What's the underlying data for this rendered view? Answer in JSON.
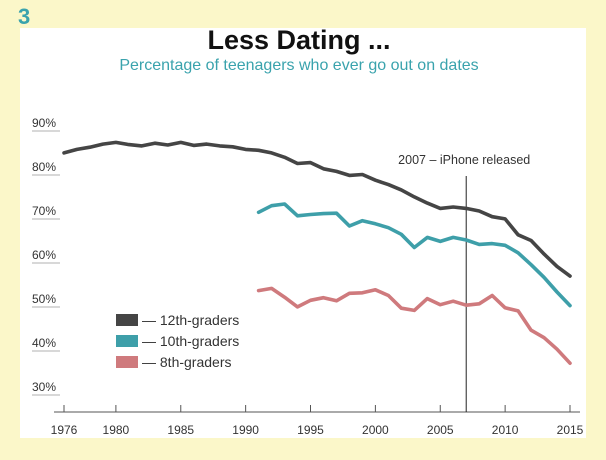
{
  "panel_number": "3",
  "colors": {
    "background": "#fbf7c9",
    "card": "#ffffff",
    "accent": "#3aa3ad",
    "series_12th": "#454545",
    "series_10th": "#3e9fa9",
    "series_8th": "#cf7a7d"
  },
  "chart_data": {
    "type": "line",
    "title": "Less Dating ...",
    "subtitle": "Percentage of teenagers who ever go out on dates",
    "xlabel": "",
    "ylabel": "",
    "xlim": [
      1976,
      2015
    ],
    "ylim": [
      30,
      90
    ],
    "x_ticks": [
      "1976",
      "1980",
      "1985",
      "1990",
      "1995",
      "2000",
      "2005",
      "2010",
      "2015"
    ],
    "y_ticks": [
      "90%",
      "80%",
      "70%",
      "60%",
      "50%",
      "40%",
      "30%"
    ],
    "annotation": {
      "x": 2007,
      "label": "2007 – iPhone released"
    },
    "legend_position": "bottom-left",
    "series": [
      {
        "name": "— 12th-graders",
        "color": "#454545",
        "x": [
          1976,
          1977,
          1978,
          1979,
          1980,
          1981,
          1982,
          1983,
          1984,
          1985,
          1986,
          1987,
          1988,
          1989,
          1990,
          1991,
          1992,
          1993,
          1994,
          1995,
          1996,
          1997,
          1998,
          1999,
          2000,
          2001,
          2002,
          2003,
          2004,
          2005,
          2006,
          2007,
          2008,
          2009,
          2010,
          2011,
          2012,
          2013,
          2014,
          2015
        ],
        "values": [
          83.2,
          84.0,
          84.5,
          85.2,
          85.6,
          85.1,
          84.8,
          85.4,
          85.0,
          85.6,
          84.9,
          85.2,
          84.8,
          84.6,
          84.0,
          83.8,
          83.2,
          82.2,
          80.8,
          81.0,
          79.6,
          79.0,
          78.1,
          78.3,
          77.0,
          76.0,
          74.8,
          73.2,
          71.8,
          70.6,
          70.9,
          70.6,
          70.0,
          68.7,
          68.2,
          64.6,
          63.3,
          60.2,
          57.4,
          55.2
        ]
      },
      {
        "name": "— 10th-graders",
        "color": "#3e9fa9",
        "x": [
          1991,
          1992,
          1993,
          1994,
          1995,
          1996,
          1997,
          1998,
          1999,
          2000,
          2001,
          2002,
          2003,
          2004,
          2005,
          2006,
          2007,
          2008,
          2009,
          2010,
          2011,
          2012,
          2013,
          2014,
          2015
        ],
        "values": [
          69.7,
          71.2,
          71.6,
          68.9,
          69.2,
          69.4,
          69.5,
          66.6,
          67.8,
          67.1,
          66.2,
          64.7,
          61.7,
          64.0,
          63.1,
          64.0,
          63.4,
          62.4,
          62.6,
          62.2,
          60.5,
          57.8,
          54.9,
          51.6,
          48.5
        ]
      },
      {
        "name": "— 8th-graders",
        "color": "#cf7a7d",
        "x": [
          1991,
          1992,
          1993,
          1994,
          1995,
          1996,
          1997,
          1998,
          1999,
          2000,
          2001,
          2002,
          2003,
          2004,
          2005,
          2006,
          2007,
          2008,
          2009,
          2010,
          2011,
          2012,
          2013,
          2014,
          2015
        ],
        "values": [
          51.9,
          52.4,
          50.4,
          48.2,
          49.7,
          50.3,
          49.6,
          51.3,
          51.4,
          52.1,
          50.8,
          47.9,
          47.4,
          50.1,
          48.7,
          49.5,
          48.6,
          48.9,
          50.8,
          48.0,
          47.3,
          42.9,
          41.2,
          38.6,
          35.4
        ]
      }
    ]
  }
}
